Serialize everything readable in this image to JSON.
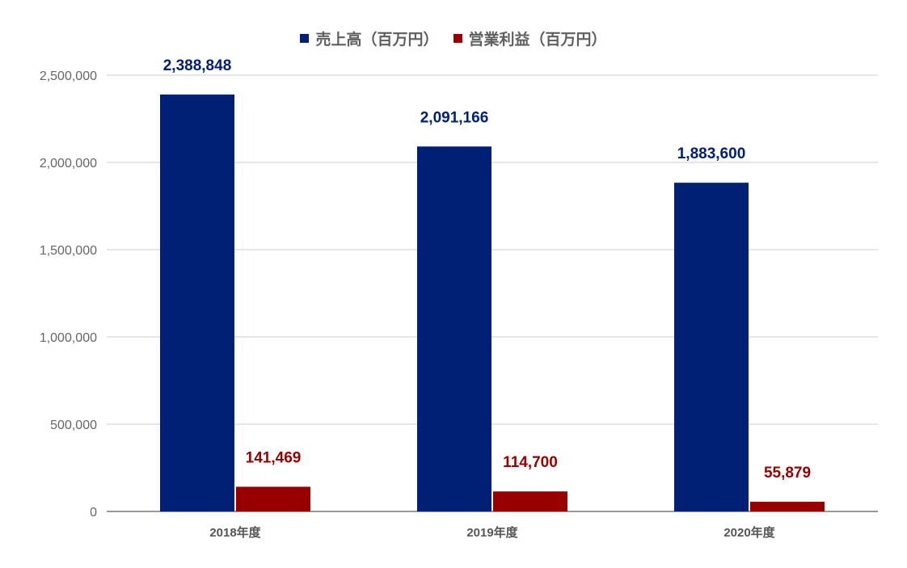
{
  "chart_data": {
    "type": "bar",
    "categories": [
      "2018年度",
      "2019年度",
      "2020年度"
    ],
    "series": [
      {
        "name": "売上高（百万円）",
        "color": "#002076",
        "values": [
          2388848,
          2091166,
          1883600
        ],
        "labels": [
          "2,388,848",
          "2,091,166",
          "1,883,600"
        ]
      },
      {
        "name": "営業利益（百万円）",
        "color": "#980000",
        "values": [
          141469,
          114700,
          55879
        ],
        "labels": [
          "141,469",
          "114,700",
          "55,879"
        ]
      }
    ],
    "yticks": [
      "0",
      "500,000",
      "1,000,000",
      "1,500,000",
      "2,000,000",
      "2,500,000"
    ],
    "ylim": [
      0,
      2500000
    ],
    "grid": true,
    "legend_position": "top"
  }
}
